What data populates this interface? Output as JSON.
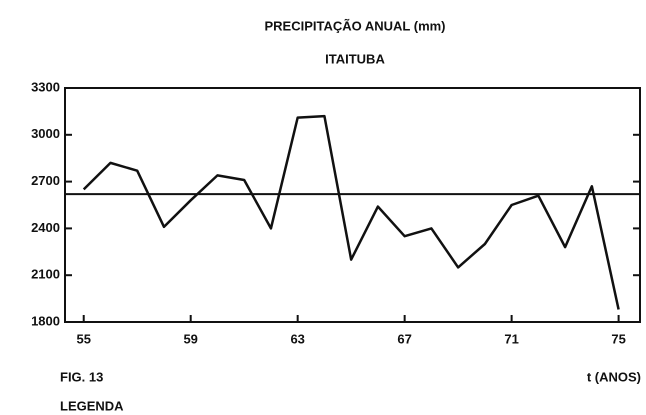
{
  "chart_data": {
    "type": "line",
    "title": "PRECIPITAÇÃO ANUAL (mm)",
    "subtitle": "ITAITUBA",
    "x_label": "t (ANOS)",
    "figure_label": "FIG. 13",
    "legend_label": "LEGENDA",
    "x": [
      55,
      56,
      57,
      58,
      59,
      60,
      61,
      62,
      63,
      64,
      65,
      66,
      67,
      68,
      69,
      70,
      71,
      72,
      73,
      74,
      75
    ],
    "series": [
      {
        "name": "ITAITUBA",
        "color": "#111111",
        "values": [
          2650,
          2820,
          2770,
          2410,
          2580,
          2740,
          2710,
          2400,
          3110,
          3120,
          2200,
          2540,
          2350,
          2400,
          2150,
          2300,
          2550,
          2610,
          2280,
          2670,
          1880
        ]
      }
    ],
    "reference_line": 2620,
    "xlim": [
      54.3,
      75.8
    ],
    "xticks": [
      55,
      59,
      63,
      67,
      71,
      75
    ],
    "ylim": [
      1800,
      3300
    ],
    "yticks": [
      1800,
      2100,
      2400,
      2700,
      3000,
      3300
    ],
    "grid": false
  }
}
